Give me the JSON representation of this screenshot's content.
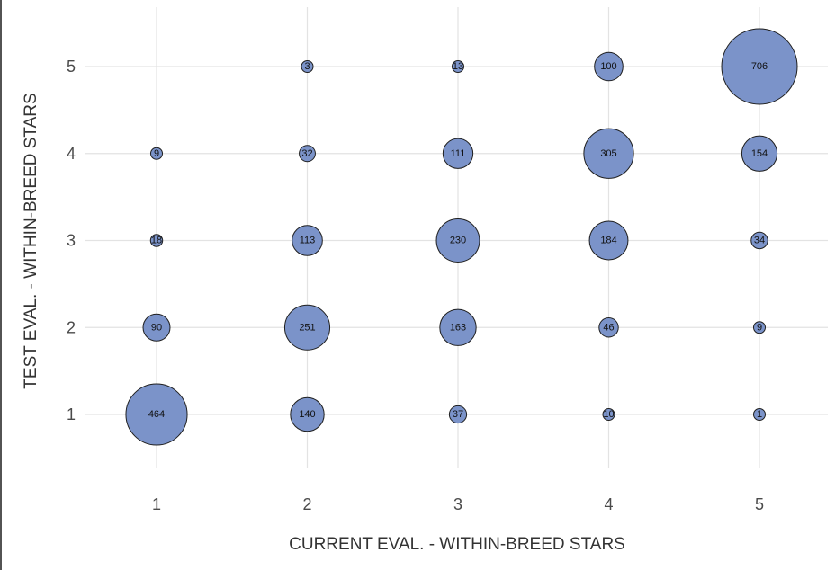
{
  "chart_data": {
    "type": "scatter",
    "subtype": "bubble",
    "title": "",
    "xlabel": "CURRENT EVAL. - WITHIN-BREED STARS",
    "ylabel": "TEST EVAL. - WITHIN-BREED STARS",
    "xlim": [
      1,
      5
    ],
    "ylim": [
      1,
      5
    ],
    "x_ticks": [
      1,
      2,
      3,
      4,
      5
    ],
    "y_ticks": [
      1,
      2,
      3,
      4,
      5
    ],
    "grid": true,
    "legend": "none",
    "bubble_color": "#7b93c9",
    "bubble_stroke": "#1f1f1f",
    "size_encodes": "count",
    "points": [
      {
        "x": 1,
        "y": 1,
        "count": 464
      },
      {
        "x": 1,
        "y": 2,
        "count": 90
      },
      {
        "x": 1,
        "y": 3,
        "count": 18
      },
      {
        "x": 1,
        "y": 4,
        "count": 9
      },
      {
        "x": 2,
        "y": 1,
        "count": 140
      },
      {
        "x": 2,
        "y": 2,
        "count": 251
      },
      {
        "x": 2,
        "y": 3,
        "count": 113
      },
      {
        "x": 2,
        "y": 4,
        "count": 32
      },
      {
        "x": 2,
        "y": 5,
        "count": 3
      },
      {
        "x": 3,
        "y": 1,
        "count": 37
      },
      {
        "x": 3,
        "y": 2,
        "count": 163
      },
      {
        "x": 3,
        "y": 3,
        "count": 230
      },
      {
        "x": 3,
        "y": 4,
        "count": 111
      },
      {
        "x": 3,
        "y": 5,
        "count": 13
      },
      {
        "x": 4,
        "y": 1,
        "count": 10
      },
      {
        "x": 4,
        "y": 2,
        "count": 46
      },
      {
        "x": 4,
        "y": 3,
        "count": 184
      },
      {
        "x": 4,
        "y": 4,
        "count": 305
      },
      {
        "x": 4,
        "y": 5,
        "count": 100
      },
      {
        "x": 5,
        "y": 1,
        "count": 1
      },
      {
        "x": 5,
        "y": 2,
        "count": 9
      },
      {
        "x": 5,
        "y": 3,
        "count": 34
      },
      {
        "x": 5,
        "y": 4,
        "count": 154
      },
      {
        "x": 5,
        "y": 5,
        "count": 706
      }
    ]
  }
}
